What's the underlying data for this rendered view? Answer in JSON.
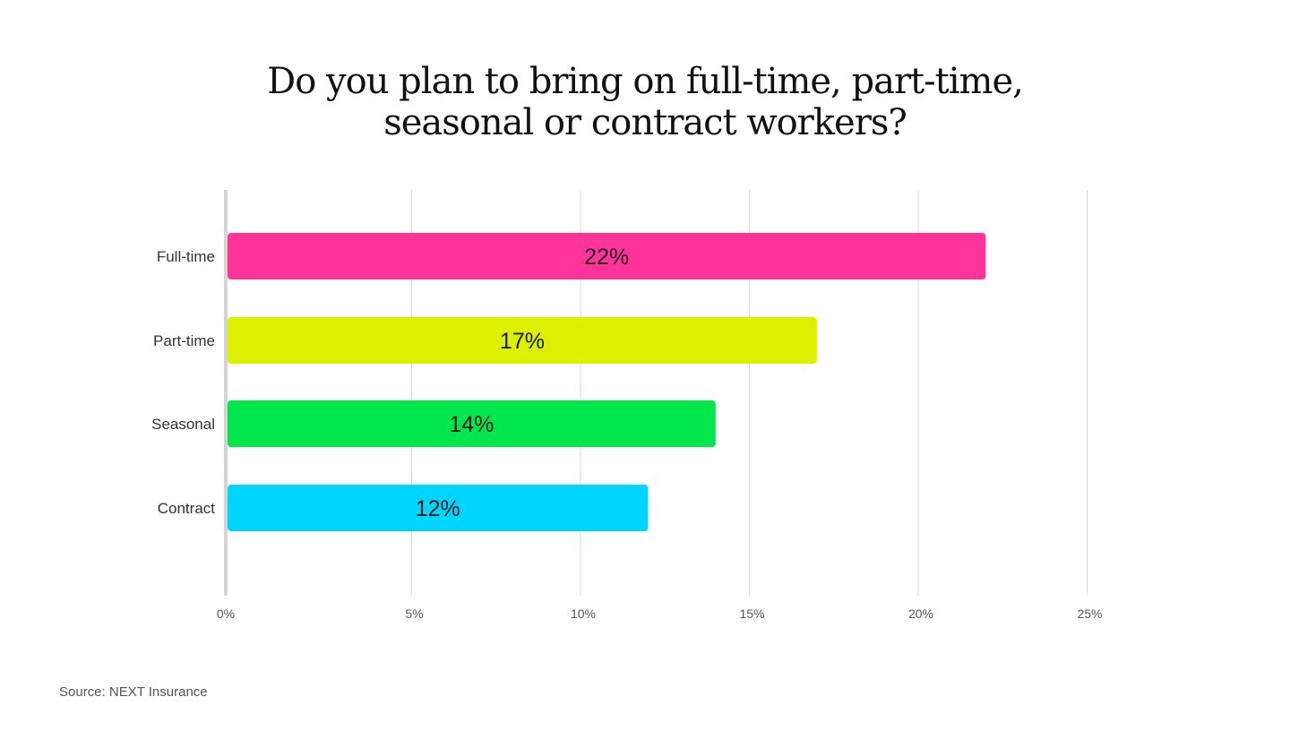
{
  "chart_data": {
    "type": "bar",
    "orientation": "horizontal",
    "title_lines": [
      "Do you plan to bring on full-time, part-time,",
      "seasonal or contract workers?"
    ],
    "categories": [
      "Full-time",
      "Part-time",
      "Seasonal",
      "Contract"
    ],
    "values": [
      22,
      17,
      14,
      12
    ],
    "data_labels": [
      "22%",
      "17%",
      "14%",
      "12%"
    ],
    "colors": [
      "#ff3399",
      "#ddf000",
      "#00e64d",
      "#00d5ff"
    ],
    "xlim": [
      0,
      25
    ],
    "xticks": [
      0,
      5,
      10,
      15,
      20,
      25
    ],
    "xtick_labels": [
      "0%",
      "5%",
      "10%",
      "15%",
      "20%",
      "25%"
    ],
    "xlabel": "",
    "ylabel": "",
    "grid": "vertical",
    "source": "Source: NEXT Insurance"
  }
}
